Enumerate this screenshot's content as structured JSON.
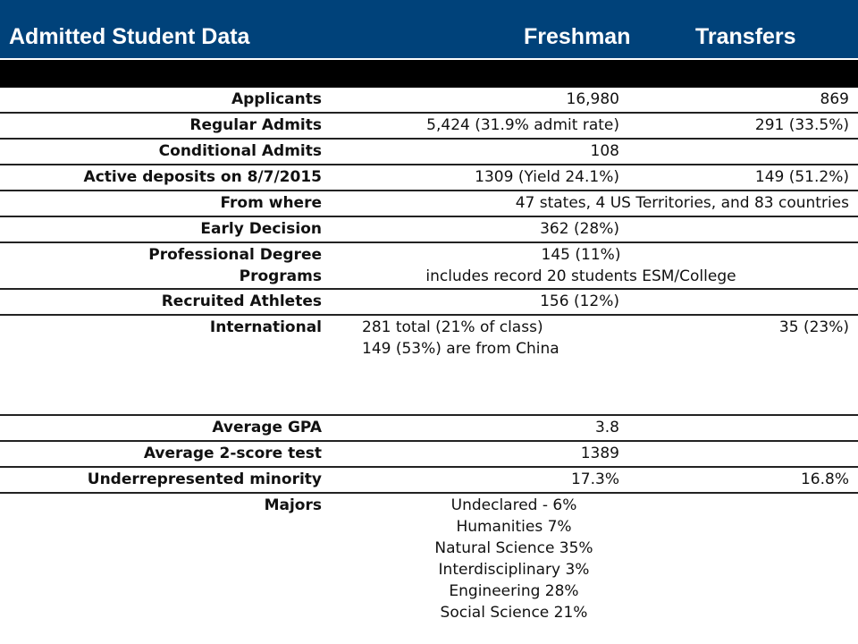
{
  "header": {
    "title": "Admitted Student Data",
    "col_freshman": "Freshman",
    "col_transfers": "Transfers"
  },
  "rows": {
    "applicants": {
      "label": "Applicants",
      "freshman": "16,980",
      "transfers": "869"
    },
    "regular": {
      "label": "Regular Admits",
      "freshman": "5,424 (31.9% admit rate)",
      "transfers": "291 (33.5%)"
    },
    "conditional": {
      "label": "Conditional Admits",
      "freshman": "108"
    },
    "deposits": {
      "label": "Active deposits on 8/7/2015",
      "freshman": "1309 (Yield 24.1%)",
      "transfers": "149 (51.2%)"
    },
    "from_where": {
      "label": "From where",
      "value": "47 states, 4 US Territories, and 83 countries"
    },
    "early": {
      "label": "Early Decision",
      "freshman": "362 (28%)"
    },
    "professional": {
      "label_line1": "Professional Degree",
      "label_line2": "Programs",
      "value_line1": "145 (11%)",
      "value_line2": "includes record 20 students ESM/College"
    },
    "athletes": {
      "label": "Recruited Athletes",
      "freshman": "156 (12%)"
    },
    "international": {
      "label": "International",
      "freshman_line1": "281 total (21% of class)",
      "freshman_line2": "149 (53%) are from China",
      "transfers": "35 (23%)"
    },
    "gpa": {
      "label": "Average GPA",
      "freshman": "3.8"
    },
    "test": {
      "label": "Average 2-score test",
      "freshman": "1389"
    },
    "urm": {
      "label": "Underrepresented minority",
      "freshman": "17.3%",
      "transfers": "16.8%"
    },
    "majors": {
      "label": "Majors",
      "items": [
        "Undeclared - 6%",
        "Humanities 7%",
        "Natural Science 35%",
        "Interdisciplinary 3%",
        "Engineering 28%",
        "Social Science 21%"
      ]
    }
  }
}
